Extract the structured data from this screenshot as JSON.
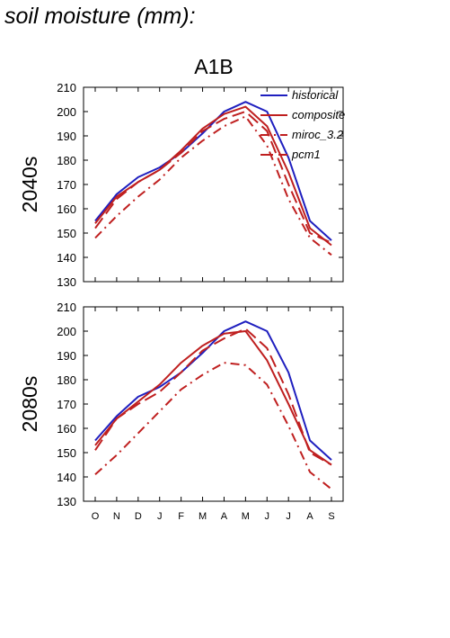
{
  "figure": {
    "title": "soil moisture (mm):",
    "scenario": "A1B"
  },
  "colors": {
    "historical": "#1f1fbf",
    "model": "#bf1f1f"
  },
  "chart_data": [
    {
      "type": "line",
      "row_label": "2040s",
      "categories": [
        "O",
        "N",
        "D",
        "J",
        "F",
        "M",
        "A",
        "M",
        "J",
        "J",
        "A",
        "S"
      ],
      "ylim": [
        130,
        210
      ],
      "yticks": [
        130,
        140,
        150,
        160,
        170,
        180,
        190,
        200,
        210
      ],
      "legend_position": "top-right",
      "legend": [
        "historical",
        "composite",
        "miroc_3.2",
        "pcm1"
      ],
      "series": [
        {
          "name": "historical",
          "style": "solid",
          "color": "historical",
          "values": [
            155,
            166,
            173,
            177,
            183,
            191,
            200,
            204,
            200,
            181,
            155,
            147
          ]
        },
        {
          "name": "composite",
          "style": "solid",
          "color": "model",
          "values": [
            154,
            165,
            171,
            176,
            184,
            193,
            199,
            202,
            194,
            175,
            152,
            145
          ]
        },
        {
          "name": "miroc_3.2",
          "style": "dashdot",
          "color": "model",
          "values": [
            148,
            157,
            165,
            172,
            181,
            188,
            194,
            198,
            186,
            164,
            148,
            141
          ]
        },
        {
          "name": "pcm1",
          "style": "dashed",
          "color": "model",
          "values": [
            152,
            164,
            171,
            176,
            183,
            192,
            197,
            200,
            192,
            170,
            150,
            146
          ]
        }
      ]
    },
    {
      "type": "line",
      "row_label": "2080s",
      "categories": [
        "O",
        "N",
        "D",
        "J",
        "F",
        "M",
        "A",
        "M",
        "J",
        "J",
        "A",
        "S"
      ],
      "ylim": [
        130,
        210
      ],
      "yticks": [
        130,
        140,
        150,
        160,
        170,
        180,
        190,
        200,
        210
      ],
      "series": [
        {
          "name": "historical",
          "style": "solid",
          "color": "historical",
          "values": [
            155,
            165,
            173,
            177,
            183,
            191,
            200,
            204,
            200,
            183,
            155,
            147
          ]
        },
        {
          "name": "composite",
          "style": "solid",
          "color": "model",
          "values": [
            153,
            164,
            171,
            178,
            187,
            194,
            199,
            200,
            188,
            170,
            151,
            145
          ]
        },
        {
          "name": "miroc_3.2",
          "style": "dashdot",
          "color": "model",
          "values": [
            141,
            149,
            158,
            167,
            176,
            182,
            187,
            186,
            178,
            161,
            142,
            135
          ]
        },
        {
          "name": "pcm1",
          "style": "dashed",
          "color": "model",
          "values": [
            151,
            164,
            170,
            175,
            183,
            192,
            197,
            201,
            193,
            174,
            150,
            145
          ]
        }
      ]
    }
  ]
}
